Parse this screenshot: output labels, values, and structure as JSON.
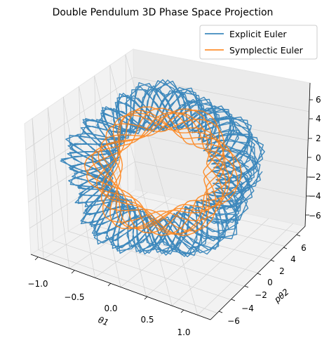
{
  "chart_data": {
    "type": "line",
    "projection": "3d",
    "title": "Double Pendulum 3D Phase Space Projection",
    "xlabel": "θ1",
    "ylabel": "pθ2",
    "zlabel": "",
    "x_ticks": [
      "−1.0",
      "−0.5",
      "0.0",
      "0.5",
      "1.0"
    ],
    "y_ticks": [
      "−6",
      "−4",
      "−2",
      "0",
      "2",
      "4",
      "6"
    ],
    "z_ticks": [
      "−6",
      "−4",
      "−2",
      "0",
      "2",
      "4",
      "6"
    ],
    "xlim": [
      -1.25,
      1.25
    ],
    "ylim": [
      -7.5,
      7.5
    ],
    "zlim": [
      -6.5,
      6.5
    ],
    "grid": true,
    "legend_position": "top-right",
    "series": [
      {
        "name": "Explicit Euler",
        "color": "#1f77b4",
        "samples": 900,
        "turns": 23,
        "torus_major_radius": 1.0,
        "torus_minor_radius": 0.3,
        "wobble_frequency": 7.3
      },
      {
        "name": "Symplectic Euler",
        "color": "#ff7f0e",
        "samples": 900,
        "turns": 14,
        "torus_major_radius": 0.8,
        "torus_minor_radius": 0.18,
        "wobble_frequency": 3.7
      }
    ]
  }
}
